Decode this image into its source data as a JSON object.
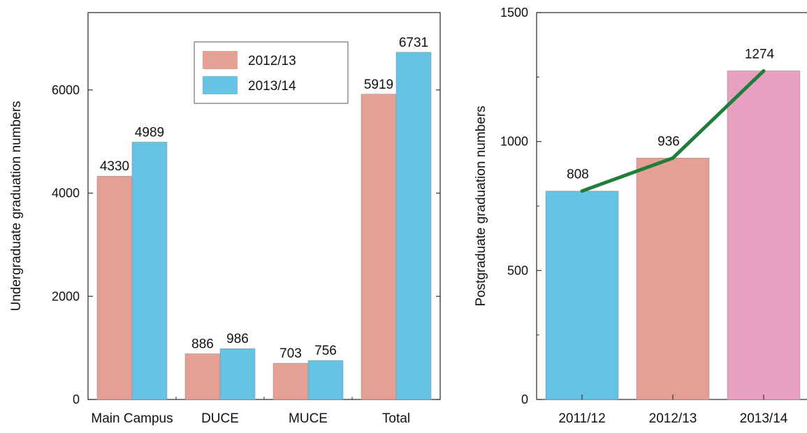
{
  "chart_data": [
    {
      "type": "bar",
      "ylabel": "Undergraduate graduation numbers",
      "categories": [
        "Main Campus",
        "DUCE",
        "MUCE",
        "Total"
      ],
      "series": [
        {
          "name": "2012/13",
          "values": [
            4330,
            886,
            703,
            5919
          ],
          "color": "#e5a095"
        },
        {
          "name": "2013/14",
          "values": [
            4989,
            986,
            756,
            6731
          ],
          "color": "#66c3e4"
        }
      ],
      "ylim": [
        0,
        7500
      ],
      "yticks": [
        0,
        2000,
        4000,
        6000
      ],
      "legend": "top-center",
      "grid": false,
      "data_labels": true
    },
    {
      "type": "bar",
      "ylabel": "Postgraduate graduation numbers",
      "categories": [
        "2011/12",
        "2012/13",
        "2013/14"
      ],
      "values": [
        808,
        936,
        1274
      ],
      "bar_colors": [
        "#66c3e4",
        "#e5a095",
        "#e8a0c0"
      ],
      "line_overlay": {
        "values": [
          808,
          936,
          1274
        ],
        "color": "#1e7e3a"
      },
      "ylim": [
        0,
        1500
      ],
      "yticks": [
        0,
        500,
        1000,
        1500
      ],
      "grid": false,
      "data_labels": true
    }
  ]
}
